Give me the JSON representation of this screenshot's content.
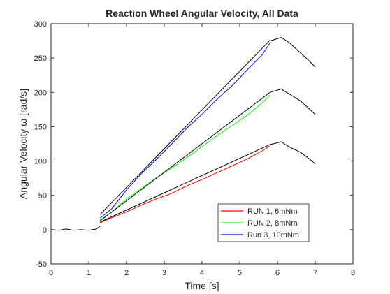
{
  "chart_data": {
    "type": "line",
    "title": "Reaction Wheel Angular Velocity, All Data",
    "xlabel": "Time [s]",
    "ylabel": "Angular Velocity ω [rad/s]",
    "xlim": [
      0,
      8
    ],
    "ylim": [
      -50,
      300
    ],
    "x_ticks": [
      0,
      1,
      2,
      3,
      4,
      5,
      6,
      7,
      8
    ],
    "y_ticks": [
      -50,
      0,
      50,
      100,
      150,
      200,
      250,
      300
    ],
    "grid": false,
    "legend_position": "bottom-right inside",
    "series": [
      {
        "name": "RUN 1, 6mNm",
        "color": "#ff0000",
        "x": [
          1.3,
          1.6,
          2.0,
          2.4,
          2.8,
          3.2,
          3.6,
          4.0,
          4.4,
          4.8,
          5.2,
          5.6,
          5.8
        ],
        "y": [
          10,
          17,
          26,
          36,
          45,
          53,
          64,
          73,
          83,
          93,
          103,
          115,
          122
        ]
      },
      {
        "name": "RUN 2, 8mNm",
        "color": "#00ff00",
        "x": [
          1.3,
          1.6,
          2.0,
          2.4,
          2.8,
          3.2,
          3.6,
          4.0,
          4.4,
          4.8,
          5.2,
          5.6,
          5.8
        ],
        "y": [
          14,
          25,
          45,
          60,
          76,
          90,
          105,
          121,
          137,
          152,
          167,
          185,
          196
        ]
      },
      {
        "name": "Run 3, 10mNm",
        "color": "#0000ff",
        "x": [
          1.3,
          1.6,
          2.0,
          2.4,
          2.8,
          3.2,
          3.6,
          4.0,
          4.4,
          4.8,
          5.2,
          5.6,
          5.8
        ],
        "y": [
          17,
          30,
          58,
          82,
          103,
          125,
          148,
          168,
          190,
          210,
          233,
          255,
          272
        ]
      },
      {
        "name": "",
        "color": "#000000",
        "x": [
          0,
          0.2,
          0.4,
          0.6,
          0.8,
          1.0,
          1.2,
          1.3
        ],
        "y": [
          0,
          -1,
          1,
          -1,
          0,
          -1,
          1,
          5
        ]
      },
      {
        "name": "",
        "color": "#000000",
        "x": [
          5.8,
          6.1,
          6.3,
          6.6,
          6.8,
          7.0
        ],
        "y": [
          275,
          280,
          273,
          258,
          248,
          237
        ]
      },
      {
        "name": "",
        "color": "#000000",
        "x": [
          5.8,
          6.1,
          6.3,
          6.6,
          6.8,
          7.0
        ],
        "y": [
          200,
          205,
          198,
          188,
          178,
          168
        ]
      },
      {
        "name": "",
        "color": "#000000",
        "x": [
          5.8,
          6.1,
          6.3,
          6.6,
          6.8,
          7.0
        ],
        "y": [
          124,
          128,
          121,
          113,
          105,
          96
        ]
      },
      {
        "name": "",
        "color": "#000000",
        "x": [
          1.3,
          5.8
        ],
        "y": [
          11,
          124
        ]
      },
      {
        "name": "",
        "color": "#000000",
        "x": [
          1.3,
          5.8
        ],
        "y": [
          13,
          200
        ]
      },
      {
        "name": "",
        "color": "#000000",
        "x": [
          1.3,
          5.8
        ],
        "y": [
          22,
          276
        ]
      }
    ]
  }
}
